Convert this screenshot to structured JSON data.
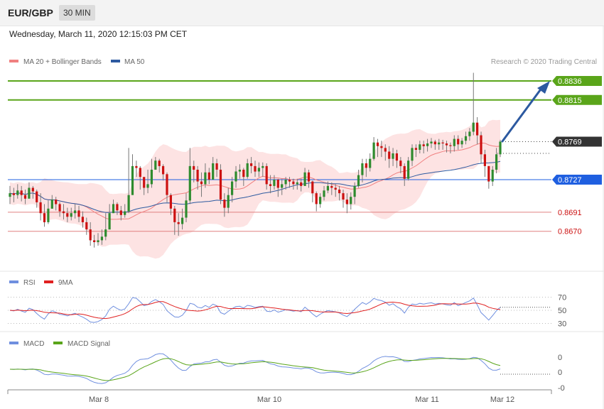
{
  "header": {
    "symbol": "EUR/GBP",
    "timeframe": "30 MIN",
    "datetime": "Wednesday, March 11, 2020 12:15:03 PM CET"
  },
  "colors": {
    "ma20": "#f08080",
    "band_fill": "#fde3e3",
    "ma50": "#2d5aa0",
    "bull": "#2e8b2e",
    "bear": "#cc1111",
    "resistance": "#5aa51a",
    "pivot": "#1f5fe0",
    "support": "#e08080",
    "current": "#333333",
    "arrow": "#2c59a0",
    "rsi": "#6f8fdf",
    "rsi_ma": "#e02020",
    "macd": "#6f8fdf",
    "macd_signal": "#5aa51a"
  },
  "chart_data": [
    {
      "type": "candlestick",
      "title": "EUR/GBP",
      "legend": [
        {
          "name": "MA 20 + Bollinger Bands",
          "color": "#f08080"
        },
        {
          "name": "MA 50",
          "color": "#2d5aa0"
        }
      ],
      "legend_position": "top-left",
      "credit": "Research © 2020 Trading Central",
      "ylim": [
        0.863,
        0.885
      ],
      "x_ticks": [
        "Mar 8",
        "Mar 10",
        "Mar 11",
        "Mar 12"
      ],
      "levels": [
        {
          "value": 0.8836,
          "label": "0.8836",
          "kind": "resistance"
        },
        {
          "value": 0.8815,
          "label": "0.8815",
          "kind": "resistance"
        },
        {
          "value": 0.8769,
          "label": "0.8769",
          "kind": "current"
        },
        {
          "value": 0.8727,
          "label": "0.8727",
          "kind": "pivot"
        },
        {
          "value": 0.8691,
          "label": "0.8691",
          "kind": "support"
        },
        {
          "value": 0.867,
          "label": "0.8670",
          "kind": "support"
        }
      ],
      "close": [
        0.8712,
        0.871,
        0.8715,
        0.871,
        0.8706,
        0.8718,
        0.8714,
        0.8702,
        0.869,
        0.868,
        0.8695,
        0.8705,
        0.87,
        0.8692,
        0.869,
        0.8686,
        0.869,
        0.8693,
        0.8686,
        0.868,
        0.8672,
        0.866,
        0.8658,
        0.866,
        0.8664,
        0.8672,
        0.869,
        0.87,
        0.8693,
        0.8688,
        0.8692,
        0.871,
        0.8742,
        0.874,
        0.873,
        0.8718,
        0.8722,
        0.8738,
        0.8748,
        0.8742,
        0.8733,
        0.871,
        0.8695,
        0.868,
        0.8678,
        0.8685,
        0.8704,
        0.8742,
        0.8738,
        0.8725,
        0.8722,
        0.8735,
        0.8727,
        0.8745,
        0.8738,
        0.8705,
        0.8696,
        0.871,
        0.8725,
        0.8736,
        0.8738,
        0.873,
        0.8745,
        0.8742,
        0.8736,
        0.874,
        0.8742,
        0.8722,
        0.872,
        0.8727,
        0.8718,
        0.8722,
        0.8727,
        0.8725,
        0.8722,
        0.8724,
        0.872,
        0.8735,
        0.8725,
        0.8712,
        0.87,
        0.8708,
        0.8715,
        0.872,
        0.8718,
        0.8716,
        0.8712,
        0.8705,
        0.87,
        0.8708,
        0.872,
        0.8732,
        0.8745,
        0.874,
        0.875,
        0.8768,
        0.8764,
        0.8762,
        0.8758,
        0.875,
        0.8756,
        0.8748,
        0.8742,
        0.8728,
        0.8748,
        0.8762,
        0.876,
        0.8766,
        0.8764,
        0.8767,
        0.8769,
        0.8766,
        0.8768,
        0.8767,
        0.8765,
        0.8764,
        0.8772,
        0.8766,
        0.877,
        0.8775,
        0.878,
        0.879,
        0.8776,
        0.8755,
        0.8742,
        0.8725,
        0.8738,
        0.8755,
        0.8769
      ],
      "high": [
        0.872,
        0.8718,
        0.8722,
        0.872,
        0.8716,
        0.8724,
        0.872,
        0.8716,
        0.8712,
        0.87,
        0.8704,
        0.871,
        0.8708,
        0.8702,
        0.87,
        0.8696,
        0.8696,
        0.87,
        0.8698,
        0.8692,
        0.8685,
        0.868,
        0.8666,
        0.8668,
        0.8672,
        0.869,
        0.87,
        0.8705,
        0.8702,
        0.8698,
        0.87,
        0.8762,
        0.8755,
        0.8748,
        0.8742,
        0.8728,
        0.8738,
        0.875,
        0.8752,
        0.875,
        0.8744,
        0.8735,
        0.8712,
        0.8698,
        0.869,
        0.8695,
        0.8712,
        0.8762,
        0.8748,
        0.8742,
        0.8735,
        0.8745,
        0.874,
        0.8752,
        0.875,
        0.8744,
        0.8712,
        0.8718,
        0.873,
        0.8742,
        0.8744,
        0.874,
        0.875,
        0.8752,
        0.8748,
        0.8746,
        0.8746,
        0.8745,
        0.8732,
        0.8732,
        0.8728,
        0.8728,
        0.873,
        0.873,
        0.8728,
        0.8728,
        0.8728,
        0.874,
        0.8738,
        0.8726,
        0.8714,
        0.8712,
        0.872,
        0.8725,
        0.8724,
        0.8722,
        0.872,
        0.8716,
        0.8712,
        0.8713,
        0.8724,
        0.8738,
        0.875,
        0.875,
        0.8756,
        0.8774,
        0.8772,
        0.877,
        0.8766,
        0.8764,
        0.8762,
        0.876,
        0.8752,
        0.8745,
        0.8752,
        0.8766,
        0.8766,
        0.877,
        0.877,
        0.8772,
        0.8773,
        0.8771,
        0.8772,
        0.8771,
        0.877,
        0.8768,
        0.8776,
        0.8776,
        0.8773,
        0.878,
        0.8784,
        0.8845,
        0.8796,
        0.878,
        0.876,
        0.8742,
        0.8742,
        0.8762,
        0.8771
      ],
      "low": [
        0.87,
        0.8702,
        0.8706,
        0.8703,
        0.87,
        0.8708,
        0.8706,
        0.8696,
        0.8682,
        0.8675,
        0.8678,
        0.8698,
        0.8693,
        0.8686,
        0.8683,
        0.868,
        0.8682,
        0.8684,
        0.868,
        0.8674,
        0.8666,
        0.8654,
        0.8652,
        0.8654,
        0.8655,
        0.866,
        0.8684,
        0.8692,
        0.8688,
        0.8682,
        0.8685,
        0.869,
        0.873,
        0.873,
        0.8716,
        0.871,
        0.8712,
        0.8718,
        0.8738,
        0.8735,
        0.8726,
        0.8702,
        0.8688,
        0.8666,
        0.8665,
        0.8672,
        0.868,
        0.87,
        0.8724,
        0.8716,
        0.8708,
        0.8718,
        0.8722,
        0.8727,
        0.873,
        0.87,
        0.8686,
        0.869,
        0.8702,
        0.8718,
        0.8728,
        0.872,
        0.8728,
        0.8734,
        0.873,
        0.873,
        0.873,
        0.8716,
        0.8712,
        0.8716,
        0.8708,
        0.871,
        0.8716,
        0.8718,
        0.8716,
        0.8716,
        0.8714,
        0.872,
        0.8718,
        0.8702,
        0.8692,
        0.8696,
        0.8704,
        0.8712,
        0.871,
        0.8708,
        0.8704,
        0.8696,
        0.869,
        0.8694,
        0.87,
        0.8718,
        0.8724,
        0.873,
        0.8736,
        0.8748,
        0.8752,
        0.8752,
        0.8748,
        0.874,
        0.8742,
        0.874,
        0.8734,
        0.872,
        0.8726,
        0.8742,
        0.8752,
        0.8756,
        0.8756,
        0.8758,
        0.8762,
        0.876,
        0.876,
        0.876,
        0.8757,
        0.8756,
        0.8758,
        0.876,
        0.8762,
        0.8766,
        0.877,
        0.8776,
        0.8766,
        0.8745,
        0.873,
        0.8717,
        0.872,
        0.8734,
        0.8752
      ]
    },
    {
      "type": "line",
      "title": "RSI",
      "legend": [
        {
          "name": "RSI",
          "color": "#6f8fdf"
        },
        {
          "name": "9MA",
          "color": "#e02020"
        }
      ],
      "ylim": [
        25,
        75
      ],
      "y_ticks": [
        70,
        50,
        30
      ]
    },
    {
      "type": "line",
      "title": "MACD",
      "legend": [
        {
          "name": "MACD",
          "color": "#6f8fdf"
        },
        {
          "name": "MACD Signal",
          "color": "#5aa51a"
        }
      ],
      "y_ticks": [
        "0",
        "0",
        "-0"
      ]
    }
  ]
}
